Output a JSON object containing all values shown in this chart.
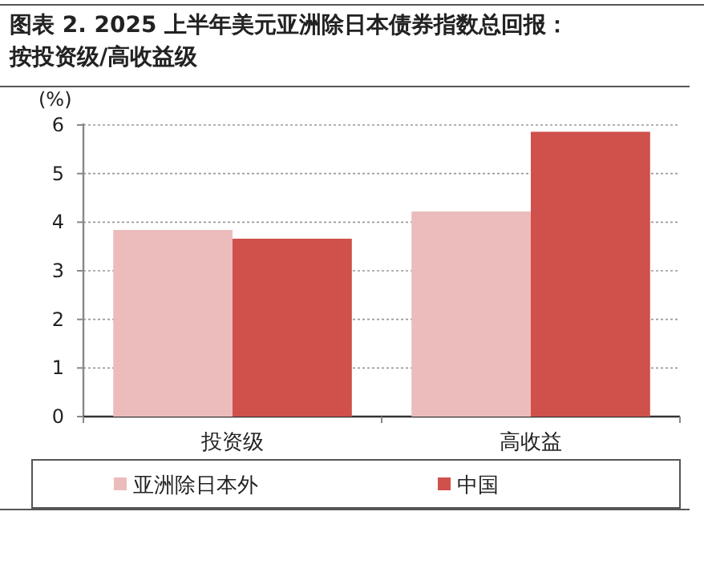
{
  "chart_data": {
    "type": "bar",
    "title": "图表 2. 2025 上半年美元亚洲除日本债券指数总回报：按投资级/高收益级",
    "ylabel": "(%)",
    "categories": [
      "投资级",
      "高收益"
    ],
    "series": [
      {
        "name": "亚洲除日本外",
        "color": "#ecbcbc",
        "values": [
          3.84,
          4.22
        ]
      },
      {
        "name": "中国",
        "color": "#d0504c",
        "values": [
          3.66,
          5.86
        ]
      }
    ],
    "ylim": [
      0,
      6
    ],
    "yticks": [
      0,
      1,
      2,
      3,
      4,
      5,
      6
    ],
    "grid": "y",
    "legend": "bottom"
  }
}
